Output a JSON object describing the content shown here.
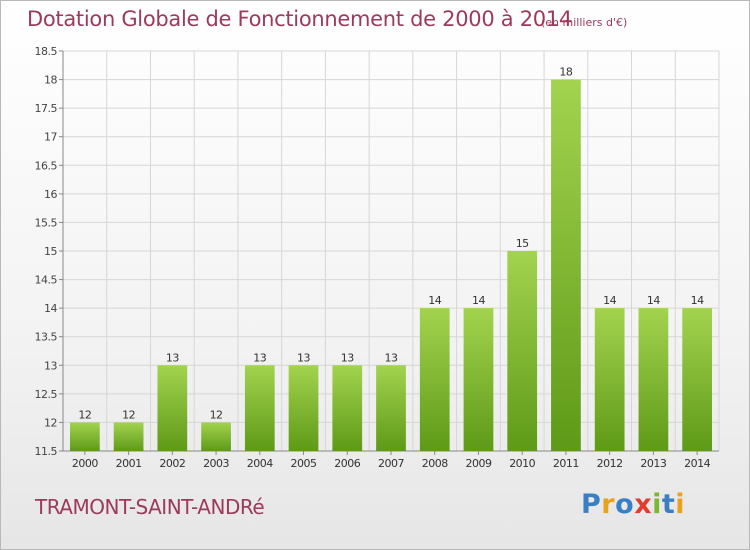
{
  "title": "Dotation Globale de Fonctionnement de 2000 à 2014",
  "unit_label": "(en milliers d'€)",
  "commune": "TRAMONT-SAINT-ANDRé",
  "logo": {
    "text": "Proxiti",
    "letters": [
      "P",
      "r",
      "o",
      "x",
      "i",
      "t",
      "i"
    ],
    "colors": [
      "#3a7fc4",
      "#e8a21c",
      "#3a7fc4",
      "#e33b2e",
      "#7cb82e",
      "#3a7fc4",
      "#e8a21c"
    ]
  },
  "colors": {
    "bar_light": "#9fd04a",
    "bar_dark": "#5e9a17",
    "text": "#9c3a5a",
    "grid": "#d6d6d6"
  },
  "chart_data": {
    "type": "bar",
    "title": "Dotation Globale de Fonctionnement de 2000 à 2014",
    "subtitle": "(en milliers d'€)",
    "xlabel": "",
    "ylabel": "",
    "categories": [
      "2000",
      "2001",
      "2002",
      "2003",
      "2004",
      "2005",
      "2006",
      "2007",
      "2008",
      "2009",
      "2010",
      "2011",
      "2012",
      "2013",
      "2014"
    ],
    "values": [
      12,
      12,
      13,
      12,
      13,
      13,
      13,
      13,
      14,
      14,
      15,
      18,
      14,
      14,
      14
    ],
    "data_labels": [
      "12",
      "12",
      "13",
      "12",
      "13",
      "13",
      "13",
      "13",
      "14",
      "14",
      "15",
      "18",
      "14",
      "14",
      "14"
    ],
    "ylim": [
      11.5,
      18.5
    ],
    "yticks": [
      11.5,
      12,
      12.5,
      13,
      13.5,
      14,
      14.5,
      15,
      15.5,
      16,
      16.5,
      17,
      17.5,
      18,
      18.5
    ],
    "ytick_labels": [
      "11.5",
      "12",
      "12.5",
      "13",
      "13.5",
      "14",
      "14.5",
      "15",
      "15.5",
      "16",
      "16.5",
      "17",
      "17.5",
      "18",
      "18.5"
    ],
    "grid": true,
    "legend": "none"
  }
}
